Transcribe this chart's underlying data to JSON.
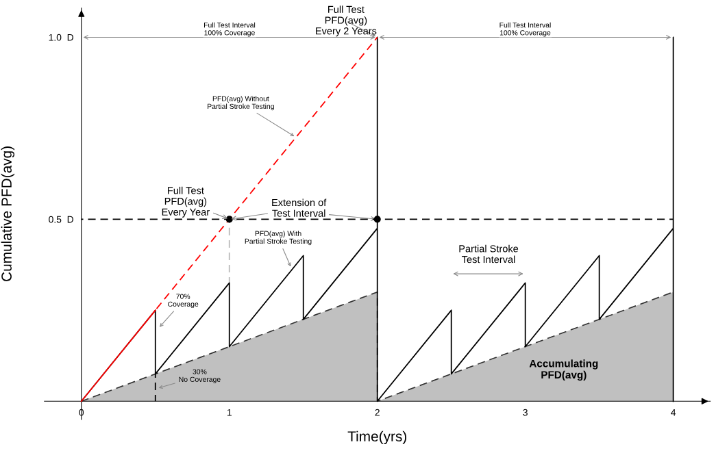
{
  "chart_data": {
    "type": "line",
    "xlabel": "Time(yrs)",
    "ylabel": "Cumulative PFD(avg)",
    "xlim": [
      -0.25,
      4.25
    ],
    "ylim": [
      -0.05,
      1.08
    ],
    "xticks": [
      0,
      1,
      2,
      3,
      4
    ],
    "yticks": [
      {
        "value": 0.5,
        "label": "0.5  D"
      },
      {
        "value": 1.0,
        "label": "1.0  D"
      }
    ],
    "grid": false,
    "series": [
      {
        "type": "area",
        "color": "#c0c0c0",
        "x": [
          0,
          2,
          2,
          4
        ],
        "values": [
          0,
          0.3,
          0,
          0.3
        ],
        "line_style": "dashed"
      },
      {
        "color": "#ff0000",
        "x": [
          0,
          0.5
        ],
        "values": [
          0,
          0.25
        ],
        "line_style": "solid"
      },
      {
        "color": "#ff0000",
        "x": [
          0.5,
          2
        ],
        "values": [
          0.25,
          1.0
        ],
        "line_style": "dashed"
      },
      {
        "color": "#000000",
        "x": [
          0,
          0.5,
          0.5,
          1,
          1,
          1.5,
          1.5,
          2,
          2,
          2,
          2.5,
          2.5,
          3,
          3,
          3.5,
          3.5,
          4,
          4,
          4
        ],
        "values": [
          0,
          0.25,
          0.075,
          0.325,
          0.15,
          0.4,
          0.225,
          0.475,
          1.0,
          0,
          0.25,
          0.075,
          0.325,
          0.15,
          0.4,
          0.225,
          0.475,
          1.0,
          0
        ],
        "line_style": "solid"
      },
      {
        "color": "#000000",
        "x": [
          0,
          4
        ],
        "values": [
          0.5,
          0.5
        ],
        "line_style": "dashed"
      },
      {
        "color": "#bbbbbb",
        "x": [
          1,
          1
        ],
        "values": [
          0.325,
          0.5
        ],
        "line_style": "dashed"
      },
      {
        "color": "#000000",
        "x": [
          0.5,
          0.5
        ],
        "values": [
          0,
          0.075
        ],
        "line_style": "dashed"
      },
      {
        "type": "scatter",
        "color": "#000000",
        "x": [
          1,
          2
        ],
        "values": [
          0.5,
          0.5
        ],
        "marker": "circle"
      }
    ],
    "annotations": [
      "Full Test Interval\n100% Coverage",
      {
        "text": "Full Test\nPFD(avg)\nEvery 2 Years",
        "x": 2,
        "y": 1.0
      },
      "Full Test Interval\n100% Coverage",
      {
        "text": "PFD(avg) Without\nPartial Stroke Testing",
        "x": 1.45,
        "y": 0.725
      },
      {
        "text": "Full Test\nPFD(avg)\nEvery Year",
        "x": 1,
        "y": 0.5
      },
      {
        "text": "Extension of\nTest Interval",
        "x": 1,
        "y": 0.5
      },
      {
        "text": "PFD(avg) With\nPartial Stroke Testing",
        "x": 1.42,
        "y": 0.365
      },
      "Partial Stroke\nTest Interval",
      {
        "text": "70%\nCoverage",
        "x": 0.52,
        "y": 0.2
      },
      {
        "text": "30%\nNo Coverage",
        "x": 0.51,
        "y": 0.035
      },
      "Accumulating\nPFD(avg)"
    ]
  }
}
